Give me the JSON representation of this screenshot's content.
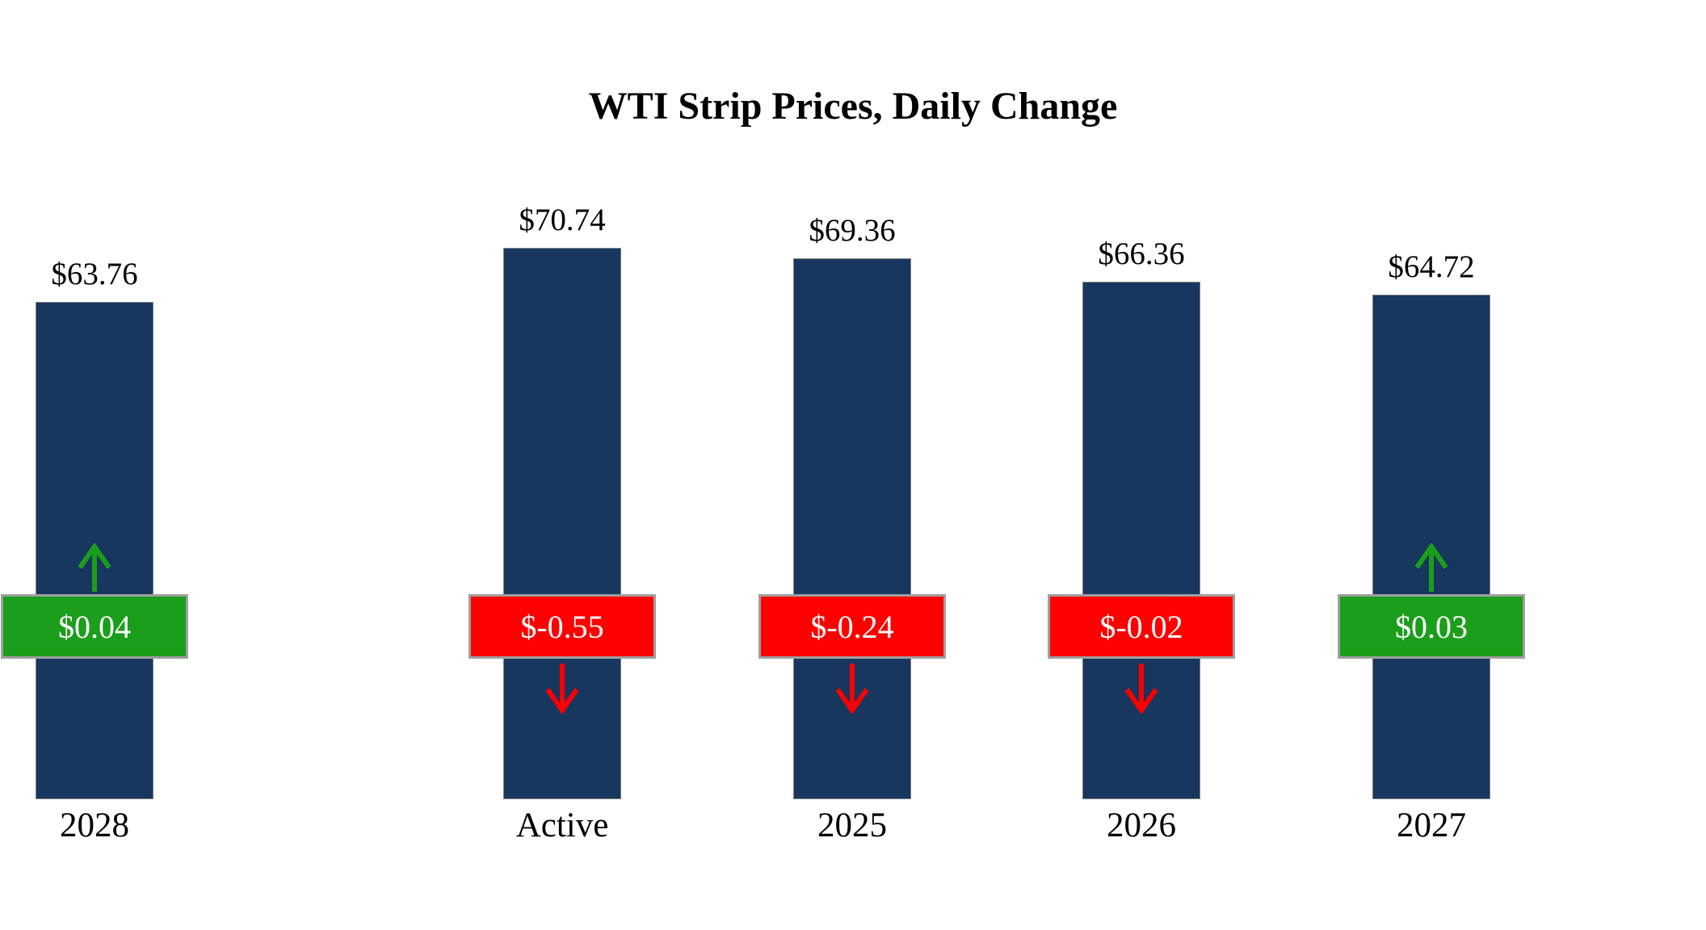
{
  "title": "WTI Strip Prices, Daily Change",
  "chart_data": {
    "type": "bar",
    "title": "WTI Strip Prices, Daily Change",
    "categories": [
      "Active",
      "2025",
      "2026",
      "2027",
      "2028"
    ],
    "values": [
      70.74,
      69.36,
      66.36,
      64.72,
      63.76
    ],
    "daily_changes": [
      -0.55,
      -0.24,
      -0.02,
      0.03,
      0.04
    ],
    "ylim": [
      0,
      75
    ],
    "grid": false,
    "legend": "none",
    "bar_color": "#17375E",
    "down_color": "#FF0000",
    "up_color": "#1B9E1B",
    "columns": [
      {
        "category": "Active",
        "price_label": "$70.74",
        "change_label": "$-0.55",
        "direction": "down"
      },
      {
        "category": "2025",
        "price_label": "$69.36",
        "change_label": "$-0.24",
        "direction": "down"
      },
      {
        "category": "2026",
        "price_label": "$66.36",
        "change_label": "$-0.02",
        "direction": "down"
      },
      {
        "category": "2027",
        "price_label": "$64.72",
        "change_label": "$0.03",
        "direction": "up"
      },
      {
        "category": "2028",
        "price_label": "$63.76",
        "change_label": "$0.04",
        "direction": "up"
      }
    ]
  }
}
